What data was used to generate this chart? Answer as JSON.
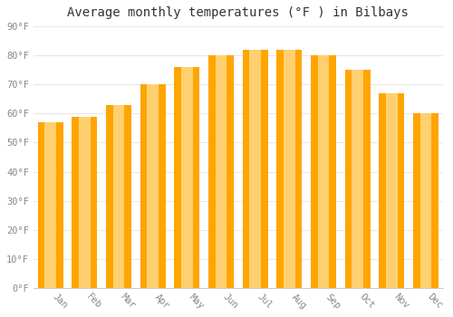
{
  "title": "Average monthly temperatures (°F ) in Bilbays",
  "months": [
    "Jan",
    "Feb",
    "Mar",
    "Apr",
    "May",
    "Jun",
    "Jul",
    "Aug",
    "Sep",
    "Oct",
    "Nov",
    "Dec"
  ],
  "values": [
    57,
    59,
    63,
    70,
    76,
    80,
    82,
    82,
    80,
    75,
    67,
    60
  ],
  "bar_color": "#FFA500",
  "bar_color_light": "#FFD070",
  "ylim": [
    0,
    90
  ],
  "yticks": [
    0,
    10,
    20,
    30,
    40,
    50,
    60,
    70,
    80,
    90
  ],
  "background_color": "#ffffff",
  "plot_bg_color": "#ffffff",
  "grid_color": "#e8e8e8",
  "title_fontsize": 10,
  "tick_label_color": "#888888",
  "tick_fontsize": 7.5,
  "title_color": "#333333"
}
